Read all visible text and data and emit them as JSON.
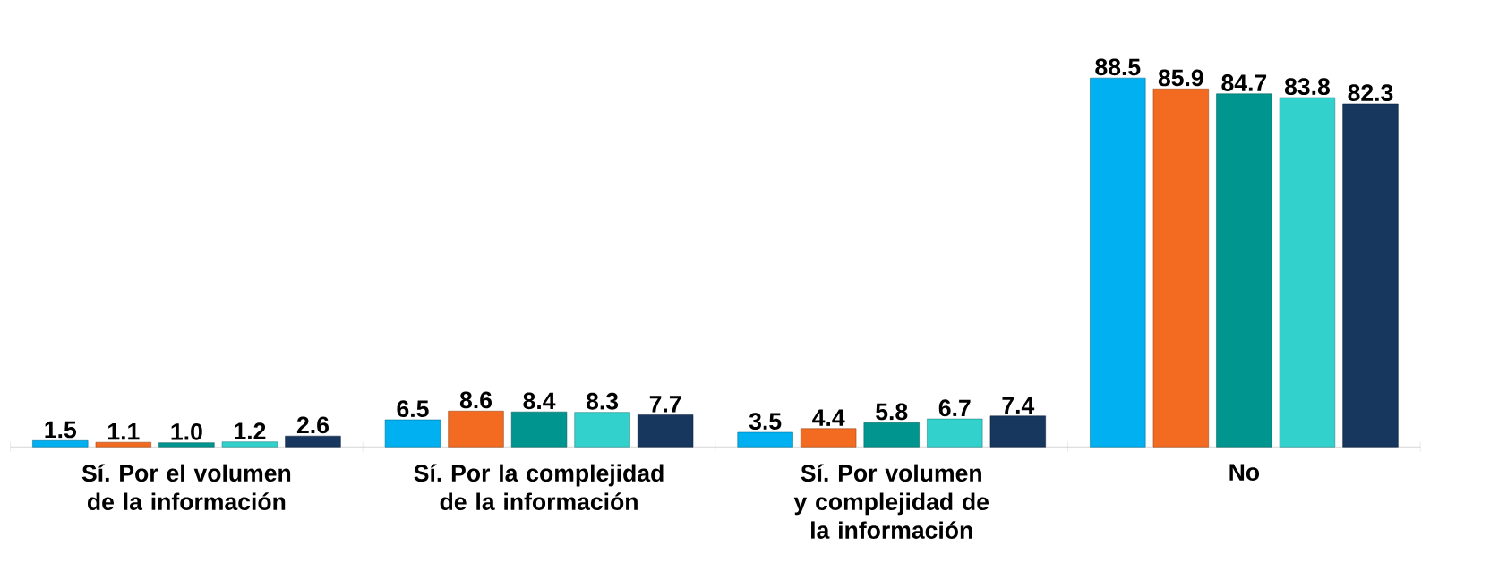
{
  "chart_data": {
    "type": "bar",
    "categories": [
      "Sí. Por el volumen de la información",
      "Sí. Por la complejidad de la información",
      "Sí. Por volumen y complejidad de la información",
      "No"
    ],
    "series": [
      {
        "color": "#00b0f0",
        "values": [
          1.5,
          6.5,
          3.5,
          88.5
        ],
        "value_labels": [
          "1.5",
          "6.5",
          "3.5",
          "88.5"
        ]
      },
      {
        "color": "#f26b21",
        "values": [
          1.1,
          8.6,
          4.4,
          85.9
        ],
        "value_labels": [
          "1.1",
          "8.6",
          "4.4",
          "85.9"
        ]
      },
      {
        "color": "#00968f",
        "values": [
          1.0,
          8.4,
          5.8,
          84.7
        ],
        "value_labels": [
          "1.0",
          "8.4",
          "5.8",
          "84.7"
        ]
      },
      {
        "color": "#33d1cc",
        "values": [
          1.2,
          8.3,
          6.7,
          83.8
        ],
        "value_labels": [
          "1.2",
          "8.3",
          "6.7",
          "83.8"
        ]
      },
      {
        "color": "#17375e",
        "values": [
          2.6,
          7.7,
          7.4,
          82.3
        ],
        "value_labels": [
          "2.6",
          "7.7",
          "7.4",
          "82.3"
        ]
      }
    ],
    "grid": false
  }
}
